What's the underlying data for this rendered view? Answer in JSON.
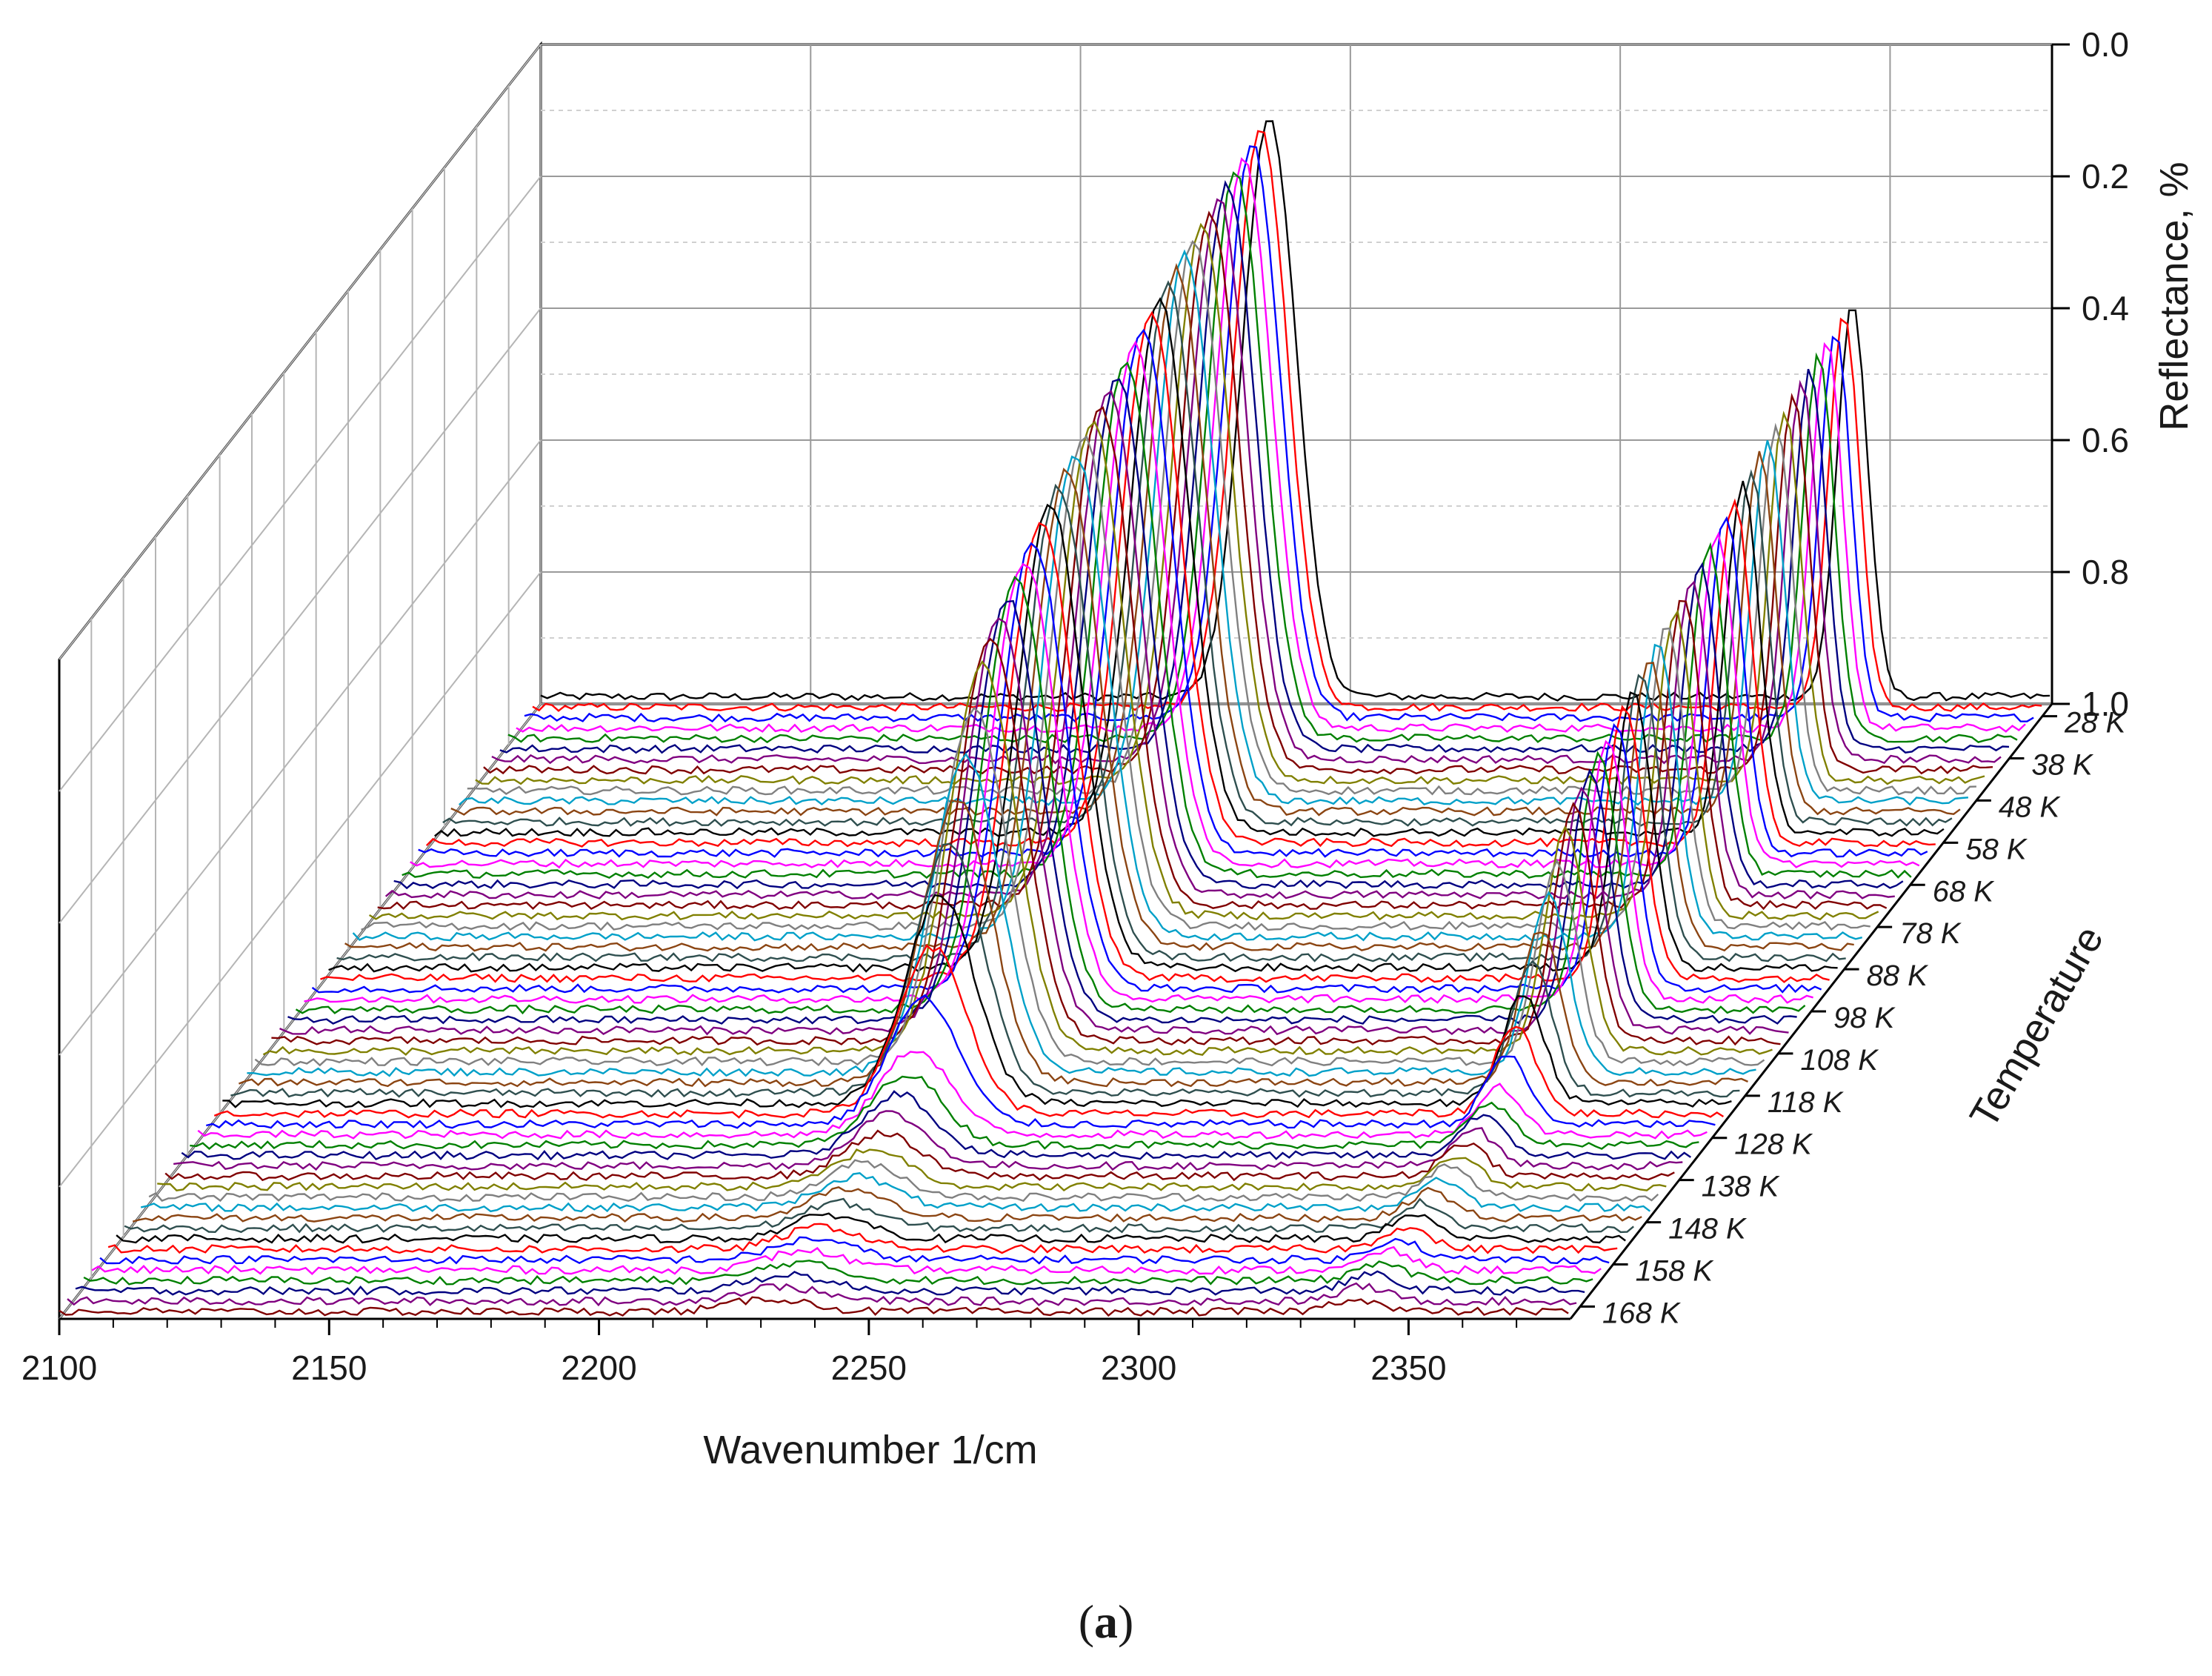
{
  "chart_data": {
    "type": "line",
    "subtype": "3d-waterfall",
    "title": "",
    "panel_label": {
      "open": "(",
      "letter": "a",
      "close": ")"
    },
    "xlabel": "Wavenumber 1/cm",
    "ylabel": "Temperature",
    "zlabel": "Reflectance, %",
    "xlim": [
      2100,
      2380
    ],
    "zlim": [
      1.0,
      0.0
    ],
    "x_ticks": [
      2100,
      2150,
      2200,
      2250,
      2300,
      2350
    ],
    "x_tick_labels": [
      "2100",
      "2150",
      "2200",
      "2250",
      "2300",
      "2350"
    ],
    "z_tick_labels": [
      "0.0",
      "0.2",
      "0.4",
      "0.6",
      "0.8",
      "1.0"
    ],
    "temperature_tick_labels": [
      "28 K",
      "38 K",
      "48 K",
      "58 K",
      "68 K",
      "78 K",
      "88 K",
      "98 K",
      "108 K",
      "118 K",
      "128 K",
      "138 K",
      "148 K",
      "158 K",
      "168 K"
    ],
    "temperature_range_K": [
      28,
      168
    ],
    "z_axis_reversed": true,
    "grid": true,
    "legend": "none",
    "series_colors": [
      "#000000",
      "#ff0000",
      "#0000ff",
      "#ff00ff",
      "#008000",
      "#000080",
      "#800080",
      "#800000",
      "#808000",
      "#808080",
      "#00a0c8",
      "#8b4513",
      "#2f4f4f"
    ],
    "series": [
      {
        "name": "28 K",
        "peak_2235_depth": 0.88,
        "peak_2343_depth": 0.6
      },
      {
        "name": "38 K",
        "peak_2235_depth": 0.86,
        "peak_2343_depth": 0.58
      },
      {
        "name": "48 K",
        "peak_2235_depth": 0.84,
        "peak_2343_depth": 0.56
      },
      {
        "name": "58 K",
        "peak_2235_depth": 0.81,
        "peak_2343_depth": 0.53
      },
      {
        "name": "68 K",
        "peak_2235_depth": 0.78,
        "peak_2343_depth": 0.5
      },
      {
        "name": "78 K",
        "peak_2235_depth": 0.75,
        "peak_2343_depth": 0.46
      },
      {
        "name": "88 K",
        "peak_2235_depth": 0.71,
        "peak_2343_depth": 0.43
      },
      {
        "name": "98 K",
        "peak_2235_depth": 0.66,
        "peak_2343_depth": 0.39
      },
      {
        "name": "108 K",
        "peak_2235_depth": 0.6,
        "peak_2343_depth": 0.35
      },
      {
        "name": "118 K",
        "peak_2235_depth": 0.38,
        "peak_2343_depth": 0.2
      },
      {
        "name": "128 K",
        "peak_2235_depth": 0.12,
        "peak_2343_depth": 0.07
      },
      {
        "name": "138 K",
        "peak_2235_depth": 0.06,
        "peak_2343_depth": 0.05
      },
      {
        "name": "148 K",
        "peak_2235_depth": 0.04,
        "peak_2343_depth": 0.04
      },
      {
        "name": "158 K",
        "peak_2235_depth": 0.03,
        "peak_2343_depth": 0.03
      },
      {
        "name": "168 K",
        "peak_2235_depth": 0.02,
        "peak_2343_depth": 0.02
      }
    ],
    "peaks": [
      {
        "center": 2235,
        "width": 7
      },
      {
        "center": 2343,
        "width": 4
      }
    ]
  }
}
